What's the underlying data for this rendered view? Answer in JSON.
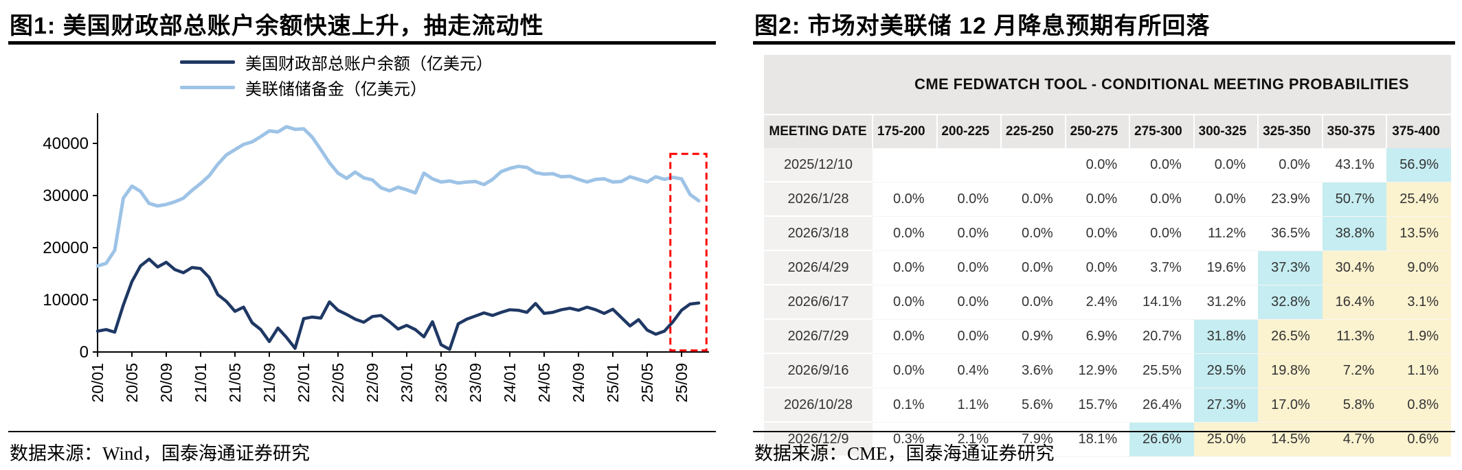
{
  "panels": {
    "left": {
      "title": "图1:  美国财政部总账户余额快速上升，抽走流动性",
      "source": "数据来源：Wind，国泰海通证券研究"
    },
    "right": {
      "title": "图2:  市场对美联储 12 月降息预期有所回落",
      "source": "数据来源：CME，国泰海通证券研究"
    }
  },
  "colors": {
    "tga_line": "#1F3864",
    "reserves_line": "#9DC3E6",
    "highlight_box": "#FF0000",
    "cyan": "#C6EDF1",
    "yellow": "#FBF2CF",
    "header_bg": "#E9E7E5",
    "date_col_bg": "#F2F1EF"
  },
  "chart_data": [
    {
      "type": "line",
      "title": "图1: 美国财政部总账户余额快速上升，抽走流动性",
      "unit": "亿美元",
      "x_unit": "month, 2020/01 - 2025/11",
      "x_tick_labels": [
        "20/01",
        "20/05",
        "20/09",
        "21/01",
        "21/05",
        "21/09",
        "22/01",
        "22/05",
        "22/09",
        "23/01",
        "23/05",
        "23/09",
        "24/01",
        "24/05",
        "24/09",
        "25/01",
        "25/05",
        "25/09"
      ],
      "x_tick_positions": [
        0,
        4,
        8,
        12,
        16,
        20,
        24,
        28,
        32,
        36,
        40,
        44,
        48,
        52,
        56,
        60,
        64,
        68
      ],
      "y_ticks": [
        0,
        10000,
        20000,
        30000,
        40000
      ],
      "ylim": [
        0,
        45000
      ],
      "grid": false,
      "legend_position": "top",
      "series": [
        {
          "name": "美国财政部总账户余额（亿美元）",
          "color": "#1F3864",
          "values": [
            4000,
            4300,
            3800,
            9000,
            13500,
            16500,
            17800,
            16300,
            17200,
            15800,
            15200,
            16200,
            16000,
            14300,
            11000,
            9700,
            7800,
            8600,
            5600,
            4300,
            2000,
            4600,
            2800,
            700,
            6400,
            6700,
            6500,
            9600,
            8000,
            7200,
            6300,
            5700,
            6800,
            7000,
            5800,
            4400,
            5100,
            4300,
            2900,
            5800,
            1400,
            500,
            5400,
            6300,
            6900,
            7500,
            7000,
            7600,
            8100,
            8000,
            7600,
            9300,
            7400,
            7600,
            8100,
            8400,
            8000,
            8600,
            8100,
            7400,
            8200,
            6600,
            5000,
            6200,
            4200,
            3400,
            4000,
            5800,
            8000,
            9200,
            9400
          ]
        },
        {
          "name": "美联储储备金（亿美元）",
          "color": "#9DC3E6",
          "values": [
            16500,
            17000,
            19500,
            29500,
            31800,
            30800,
            28500,
            28000,
            28300,
            28800,
            29500,
            31000,
            32300,
            33800,
            36000,
            37800,
            38800,
            39800,
            40300,
            41300,
            42400,
            42200,
            43200,
            42700,
            42800,
            41200,
            38800,
            36300,
            34300,
            33300,
            34500,
            33400,
            33000,
            31500,
            30900,
            31600,
            31100,
            30500,
            34300,
            33200,
            32600,
            32800,
            32400,
            32600,
            32700,
            32100,
            33100,
            34600,
            35200,
            35600,
            35400,
            34400,
            34100,
            34200,
            33600,
            33700,
            33100,
            32600,
            33100,
            33200,
            32600,
            32700,
            33600,
            33100,
            32600,
            33600,
            33100,
            33500,
            33200,
            30200,
            29000
          ]
        }
      ],
      "highlight_box": {
        "x_from": 66.7,
        "x_to": 70.9,
        "y_from": 300,
        "y_to": 38000
      }
    },
    {
      "type": "table",
      "title": "CME FEDWATCH TOOL - CONDITIONAL MEETING PROBABILITIES",
      "row_header": "MEETING DATE",
      "columns": [
        "175-200",
        "200-225",
        "225-250",
        "250-275",
        "275-300",
        "300-325",
        "325-350",
        "350-375",
        "375-400"
      ],
      "rows": [
        {
          "date": "2025/12/10",
          "values": [
            "",
            "",
            "",
            "0.0%",
            "0.0%",
            "0.0%",
            "0.0%",
            "43.1%",
            "56.9%"
          ],
          "highlights": [
            "",
            "",
            "",
            "",
            "",
            "",
            "",
            "",
            "cyan"
          ]
        },
        {
          "date": "2026/1/28",
          "values": [
            "0.0%",
            "0.0%",
            "0.0%",
            "0.0%",
            "0.0%",
            "0.0%",
            "23.9%",
            "50.7%",
            "25.4%"
          ],
          "highlights": [
            "",
            "",
            "",
            "",
            "",
            "",
            "",
            "cyan",
            "yellow"
          ]
        },
        {
          "date": "2026/3/18",
          "values": [
            "0.0%",
            "0.0%",
            "0.0%",
            "0.0%",
            "0.0%",
            "11.2%",
            "36.5%",
            "38.8%",
            "13.5%"
          ],
          "highlights": [
            "",
            "",
            "",
            "",
            "",
            "",
            "",
            "cyan",
            "yellow"
          ]
        },
        {
          "date": "2026/4/29",
          "values": [
            "0.0%",
            "0.0%",
            "0.0%",
            "0.0%",
            "3.7%",
            "19.6%",
            "37.3%",
            "30.4%",
            "9.0%"
          ],
          "highlights": [
            "",
            "",
            "",
            "",
            "",
            "",
            "cyan",
            "yellow",
            "yellow"
          ]
        },
        {
          "date": "2026/6/17",
          "values": [
            "0.0%",
            "0.0%",
            "0.0%",
            "2.4%",
            "14.1%",
            "31.2%",
            "32.8%",
            "16.4%",
            "3.1%"
          ],
          "highlights": [
            "",
            "",
            "",
            "",
            "",
            "",
            "cyan",
            "yellow",
            "yellow"
          ]
        },
        {
          "date": "2026/7/29",
          "values": [
            "0.0%",
            "0.0%",
            "0.9%",
            "6.9%",
            "20.7%",
            "31.8%",
            "26.5%",
            "11.3%",
            "1.9%"
          ],
          "highlights": [
            "",
            "",
            "",
            "",
            "",
            "cyan",
            "yellow",
            "yellow",
            "yellow"
          ]
        },
        {
          "date": "2026/9/16",
          "values": [
            "0.0%",
            "0.4%",
            "3.6%",
            "12.9%",
            "25.5%",
            "29.5%",
            "19.8%",
            "7.2%",
            "1.1%"
          ],
          "highlights": [
            "",
            "",
            "",
            "",
            "",
            "cyan",
            "yellow",
            "yellow",
            "yellow"
          ]
        },
        {
          "date": "2026/10/28",
          "values": [
            "0.1%",
            "1.1%",
            "5.6%",
            "15.7%",
            "26.4%",
            "27.3%",
            "17.0%",
            "5.8%",
            "0.8%"
          ],
          "highlights": [
            "",
            "",
            "",
            "",
            "",
            "cyan",
            "yellow",
            "yellow",
            "yellow"
          ]
        },
        {
          "date": "2026/12/9",
          "values": [
            "0.3%",
            "2.1%",
            "7.9%",
            "18.1%",
            "26.6%",
            "25.0%",
            "14.5%",
            "4.7%",
            "0.6%"
          ],
          "highlights": [
            "",
            "",
            "",
            "",
            "cyan",
            "yellow",
            "yellow",
            "yellow",
            "yellow"
          ]
        }
      ]
    }
  ]
}
